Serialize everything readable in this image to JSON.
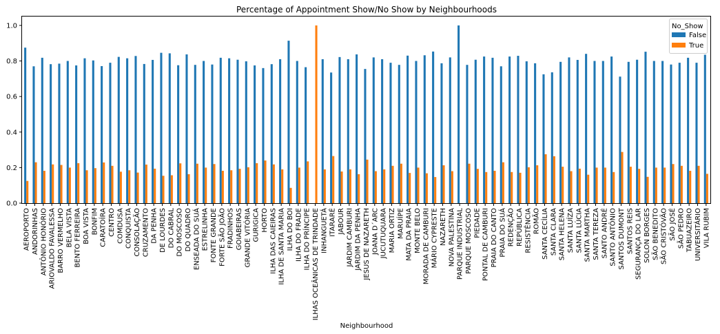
{
  "chart_data": {
    "type": "bar",
    "title": "Percentage of Appointment Show/No Show by Neighbourhoods",
    "xlabel": "Neighbourhood",
    "ylabel": "",
    "ylim": [
      0,
      1.05
    ],
    "yticks": [
      0.0,
      0.2,
      0.4,
      0.6,
      0.8,
      1.0
    ],
    "ytick_labels": [
      "0.0",
      "0.2",
      "0.4",
      "0.6",
      "0.8",
      "1.0"
    ],
    "grid": false,
    "legend": {
      "title": "No_Show",
      "placement": "top-right"
    },
    "categories": [
      "AEROPORTO",
      "ANDORINHAS",
      "ANTÔNIO HONÓRIO",
      "ARIOVALDO FAVALESSA",
      "BARRO VERMELHO",
      "BELA VISTA",
      "BENTO FERREIRA",
      "BOA VISTA",
      "BONFIM",
      "CARATOÍRA",
      "CENTRO",
      "COMDUSA",
      "CONQUISTA",
      "CONSOLAÇÃO",
      "CRUZAMENTO",
      "DA PENHA",
      "DE LOURDES",
      "DO CABRAL",
      "DO MOSCOSO",
      "DO QUADRO",
      "ENSEADA DO SUÁ",
      "ESTRELINHA",
      "FONTE GRANDE",
      "FORTE SÃO JOÃO",
      "FRADINHOS",
      "GOIABEIRAS",
      "GRANDE VITÓRIA",
      "GURIGICA",
      "HORTO",
      "ILHA DAS CAIEIRAS",
      "ILHA DE SANTA MARIA",
      "ILHA DO BOI",
      "ILHA DO FRADE",
      "ILHA DO PRÍNCIPE",
      "ILHAS OCEÂNICAS DE TRINDADE",
      "INHANGUETÁ",
      "ITARARÉ",
      "JABOUR",
      "JARDIM CAMBURI",
      "JARDIM DA PENHA",
      "JESUS DE NAZARETH",
      "JOANA D´ARC",
      "JUCUTUQUARA",
      "MARIA ORTIZ",
      "MARUÍPE",
      "MATA DA PRAIA",
      "MONTE BELO",
      "MORADA DE CAMBURI",
      "MÁRIO CYPRESTE",
      "NAZARETH",
      "NOVA PALESTINA",
      "PARQUE INDUSTRIAL",
      "PARQUE MOSCOSO",
      "PIEDADE",
      "PONTAL DE CAMBURI",
      "PRAIA DO CANTO",
      "PRAIA DO SUÁ",
      "REDENÇÃO",
      "REPÚBLICA",
      "RESISTÊNCIA",
      "ROMÃO",
      "SANTA CECÍLIA",
      "SANTA CLARA",
      "SANTA HELENA",
      "SANTA LUÍZA",
      "SANTA LÚCIA",
      "SANTA MARTHA",
      "SANTA TEREZA",
      "SANTO ANDRÉ",
      "SANTO ANTÔNIO",
      "SANTOS DUMONT",
      "SANTOS REIS",
      "SEGURANÇA DO LAR",
      "SOLON BORGES",
      "SÃO BENEDITO",
      "SÃO CRISTÓVÃO",
      "SÃO JOSÉ",
      "SÃO PEDRO",
      "TABUAZEIRO",
      "UNIVERSITÁRIO",
      "VILA RUBIM"
    ],
    "series": [
      {
        "name": "False",
        "color": "#1f77b4",
        "values": [
          0.875,
          0.77,
          0.818,
          0.782,
          0.785,
          0.8,
          0.775,
          0.815,
          0.803,
          0.771,
          0.79,
          0.823,
          0.815,
          0.828,
          0.783,
          0.806,
          0.846,
          0.843,
          0.776,
          0.837,
          0.778,
          0.8,
          0.78,
          0.818,
          0.815,
          0.807,
          0.798,
          0.775,
          0.76,
          0.782,
          0.81,
          0.914,
          0.8,
          0.765,
          0.0,
          0.81,
          0.735,
          0.822,
          0.81,
          0.837,
          0.755,
          0.82,
          0.81,
          0.79,
          0.778,
          0.83,
          0.8,
          0.832,
          0.853,
          0.787,
          0.82,
          1.0,
          0.778,
          0.807,
          0.825,
          0.818,
          0.77,
          0.825,
          0.829,
          0.798,
          0.787,
          0.725,
          0.736,
          0.795,
          0.82,
          0.806,
          0.84,
          0.8,
          0.8,
          0.825,
          0.712,
          0.795,
          0.807,
          0.852,
          0.8,
          0.8,
          0.78,
          0.79,
          0.818,
          0.79,
          0.835
        ]
      },
      {
        "name": "True",
        "color": "#ff7f0e",
        "values": [
          0.125,
          0.23,
          0.182,
          0.218,
          0.215,
          0.2,
          0.225,
          0.185,
          0.197,
          0.229,
          0.21,
          0.177,
          0.185,
          0.172,
          0.217,
          0.194,
          0.154,
          0.157,
          0.224,
          0.163,
          0.222,
          0.2,
          0.22,
          0.182,
          0.185,
          0.193,
          0.202,
          0.225,
          0.24,
          0.218,
          0.19,
          0.086,
          0.2,
          0.235,
          1.0,
          0.19,
          0.265,
          0.178,
          0.19,
          0.163,
          0.245,
          0.18,
          0.19,
          0.21,
          0.222,
          0.17,
          0.2,
          0.168,
          0.147,
          0.213,
          0.18,
          0.0,
          0.222,
          0.193,
          0.175,
          0.182,
          0.23,
          0.175,
          0.171,
          0.202,
          0.213,
          0.275,
          0.264,
          0.205,
          0.18,
          0.194,
          0.16,
          0.2,
          0.2,
          0.175,
          0.288,
          0.205,
          0.193,
          0.148,
          0.2,
          0.2,
          0.22,
          0.21,
          0.182,
          0.21,
          0.165
        ]
      }
    ]
  }
}
